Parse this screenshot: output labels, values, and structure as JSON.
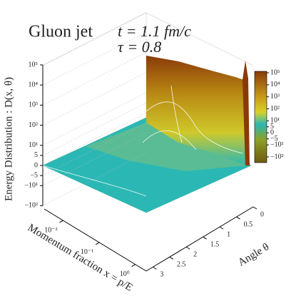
{
  "chart_data": {
    "type": "surface3d",
    "title": "Gluon jet",
    "subtitle": [
      "t = 1.1 fm/c",
      "τ = 0.8"
    ],
    "zlabel": "Energy Distribution : D(x, θ)",
    "xlabel": "Momentum fraction x = p/E",
    "ylabel": "Angle θ",
    "xscale": "log",
    "zscale": "symlog",
    "zlinthresh": 10,
    "xlim": [
      0.003,
      2
    ],
    "xticks": [
      {
        "value": 0.01,
        "label": "10⁻²"
      },
      {
        "value": 0.1,
        "label": "10⁻¹"
      },
      {
        "value": 1,
        "label": "10⁰"
      }
    ],
    "ylim": [
      3.2,
      0
    ],
    "yticks": [
      0,
      0.5,
      1,
      1.5,
      2,
      2.5,
      3
    ],
    "zlim": [
      -100,
      100000
    ],
    "zticks": [
      {
        "value": 100000,
        "label": "10⁵"
      },
      {
        "value": 10000,
        "label": "10⁴"
      },
      {
        "value": 1000,
        "label": "10³"
      },
      {
        "value": 100,
        "label": "10²"
      },
      {
        "value": 10,
        "label": "10¹"
      },
      5,
      0,
      {
        "value": -5,
        "label": "−5"
      },
      {
        "value": -10,
        "label": "−10¹"
      },
      {
        "value": -100,
        "label": "−10²"
      }
    ],
    "colorbar_lim": [
      -300,
      100000
    ],
    "colors": [
      "#8a3a08",
      "#c9a21a",
      "#d8d22a",
      "#2bb8b4",
      "#6e7a1a"
    ]
  }
}
